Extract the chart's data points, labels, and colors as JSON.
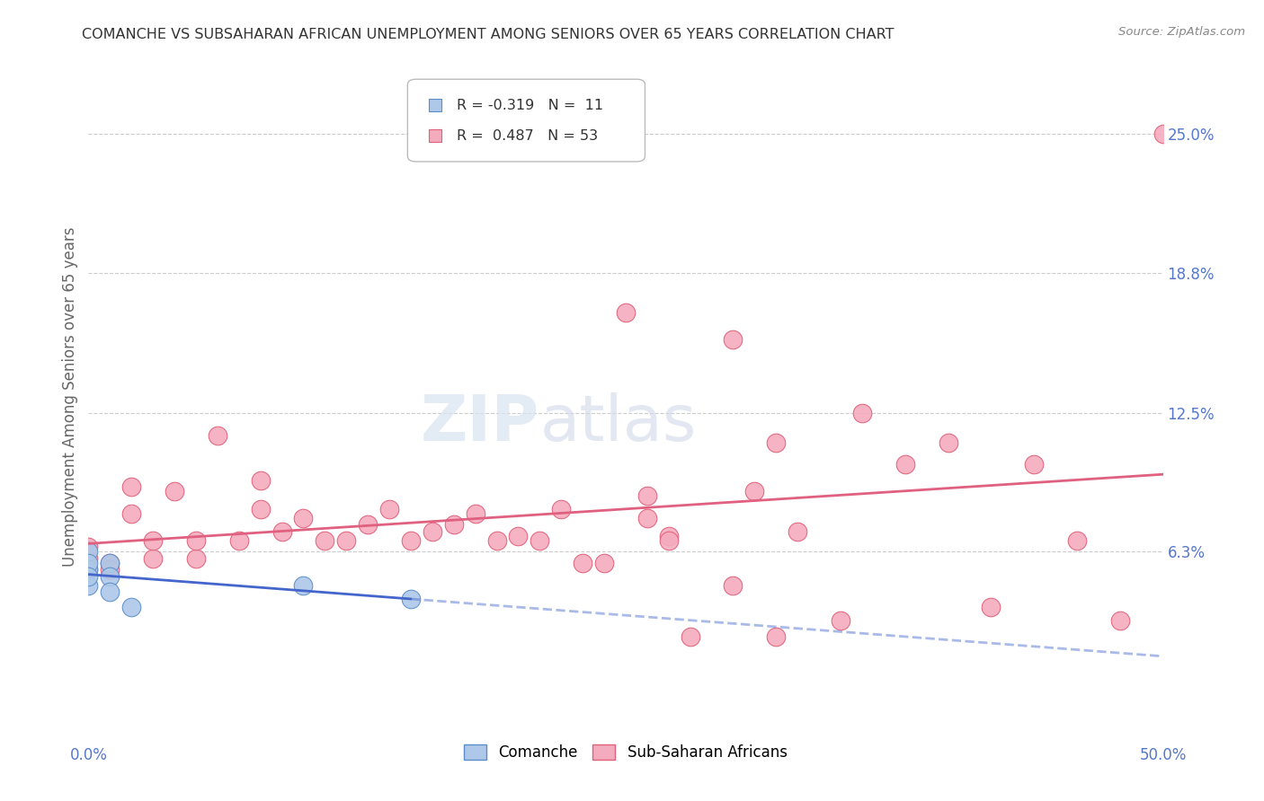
{
  "title": "COMANCHE VS SUBSAHARAN AFRICAN UNEMPLOYMENT AMONG SENIORS OVER 65 YEARS CORRELATION CHART",
  "source": "Source: ZipAtlas.com",
  "ylabel": "Unemployment Among Seniors over 65 years",
  "xlim": [
    0.0,
    0.5
  ],
  "ylim": [
    -0.02,
    0.285
  ],
  "xticks": [
    0.0,
    0.1,
    0.2,
    0.3,
    0.4,
    0.5
  ],
  "xticklabels": [
    "0.0%",
    "",
    "",
    "",
    "",
    "50.0%"
  ],
  "ytick_right_labels": [
    "25.0%",
    "18.8%",
    "12.5%",
    "6.3%"
  ],
  "ytick_right_values": [
    0.25,
    0.188,
    0.125,
    0.063
  ],
  "watermark": "ZIPatlas",
  "legend_comanche_R": "-0.319",
  "legend_comanche_N": "11",
  "legend_ssa_R": "0.487",
  "legend_ssa_N": "53",
  "comanche_color": "#adc8e8",
  "comanche_edge_color": "#5b8ec9",
  "ssa_color": "#f5abbe",
  "ssa_edge_color": "#e0607a",
  "comanche_line_color": "#4466cc",
  "ssa_line_color": "#e06080",
  "comanche_scatter_x": [
    0.0,
    0.0,
    0.0,
    0.0,
    0.0,
    0.01,
    0.01,
    0.01,
    0.02,
    0.1,
    0.15
  ],
  "comanche_scatter_y": [
    0.063,
    0.055,
    0.048,
    0.058,
    0.052,
    0.058,
    0.052,
    0.045,
    0.038,
    0.048,
    0.042
  ],
  "ssa_scatter_x": [
    0.0,
    0.0,
    0.0,
    0.01,
    0.01,
    0.02,
    0.02,
    0.03,
    0.03,
    0.04,
    0.05,
    0.05,
    0.06,
    0.07,
    0.08,
    0.08,
    0.09,
    0.1,
    0.11,
    0.12,
    0.13,
    0.14,
    0.15,
    0.16,
    0.17,
    0.18,
    0.19,
    0.2,
    0.21,
    0.22,
    0.23,
    0.24,
    0.25,
    0.26,
    0.27,
    0.28,
    0.3,
    0.31,
    0.32,
    0.33,
    0.35,
    0.36,
    0.38,
    0.4,
    0.42,
    0.44,
    0.46,
    0.48,
    0.5,
    0.26,
    0.27,
    0.3,
    0.32
  ],
  "ssa_scatter_y": [
    0.06,
    0.055,
    0.065,
    0.058,
    0.055,
    0.08,
    0.092,
    0.06,
    0.068,
    0.09,
    0.06,
    0.068,
    0.115,
    0.068,
    0.082,
    0.095,
    0.072,
    0.078,
    0.068,
    0.068,
    0.075,
    0.082,
    0.068,
    0.072,
    0.075,
    0.08,
    0.068,
    0.07,
    0.068,
    0.082,
    0.058,
    0.058,
    0.17,
    0.078,
    0.07,
    0.025,
    0.048,
    0.09,
    0.025,
    0.072,
    0.032,
    0.125,
    0.102,
    0.112,
    0.038,
    0.102,
    0.068,
    0.032,
    0.25,
    0.088,
    0.068,
    0.158,
    0.112
  ],
  "background_color": "#ffffff",
  "grid_color": "#cccccc"
}
